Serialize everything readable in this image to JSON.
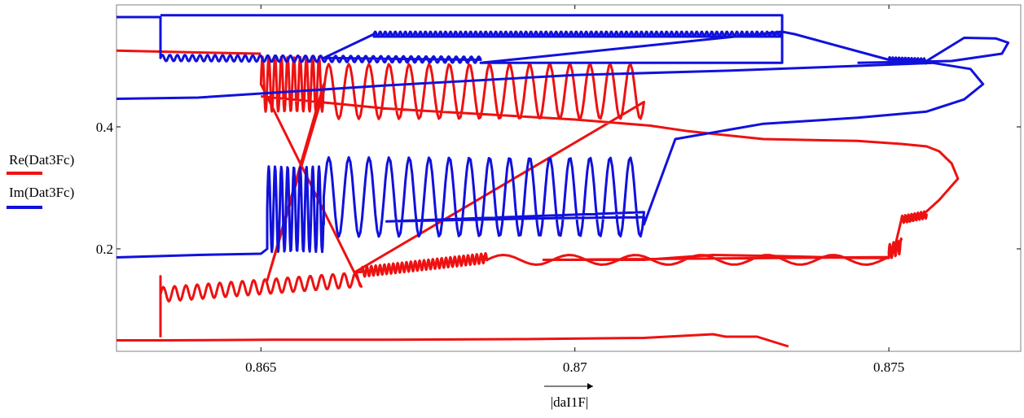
{
  "chart_data": {
    "type": "line",
    "title": "",
    "xlabel": "|daI1F|",
    "ylabel": "",
    "xlim": [
      0.8627,
      0.8771
    ],
    "ylim": [
      0.032,
      0.6
    ],
    "x_ticks": [
      {
        "value": 0.865,
        "label": "0.865"
      },
      {
        "value": 0.87,
        "label": "0.87"
      },
      {
        "value": 0.875,
        "label": "0.875"
      }
    ],
    "y_ticks": [
      {
        "value": 0.2,
        "label": "0.2"
      },
      {
        "value": 0.4,
        "label": "0.4"
      }
    ],
    "grid": false,
    "legend_position": "left",
    "series": [
      {
        "name": "Re(Dat3Fc)",
        "color": "#ee1111",
        "segments": [
          {
            "x": [
              0.8627,
              0.8634,
              0.8652,
              0.867,
              0.8692,
              0.8711,
              0.8722,
              0.8724,
              0.8729,
              0.8734
            ],
            "y": [
              0.05,
              0.05,
              0.051,
              0.051,
              0.052,
              0.054,
              0.06,
              0.056,
              0.056,
              0.04
            ]
          },
          {
            "x": [
              0.8634,
              0.8634,
              0.8634,
              0.8651,
              0.8665,
              0.8685,
              0.8695,
              0.8711,
              0.8722,
              0.8733,
              0.8745,
              0.875,
              0.8751,
              0.8753,
              0.8755,
              0.8758,
              0.8761,
              0.876,
              0.8758,
              0.8756,
              0.8752,
              0.8745,
              0.873,
              0.8718,
              0.8712,
              0.87,
              0.867,
              0.866,
              0.865
            ],
            "y": [
              0.055,
              0.155,
              0.125,
              0.148,
              0.162,
              0.19,
              0.182,
              0.182,
              0.19,
              0.188,
              0.185,
              0.185,
              0.205,
              0.245,
              0.252,
              0.28,
              0.315,
              0.34,
              0.36,
              0.368,
              0.372,
              0.377,
              0.38,
              0.393,
              0.402,
              0.412,
              0.43,
              0.44,
              0.45
            ],
            "oscillations": [
              {
                "x_from": 0.8634,
                "x_to": 0.8666,
                "center": [
                  0.125,
                  0.15
                ],
                "amplitude": 0.012,
                "period": 0.00018
              },
              {
                "x_from": 0.8666,
                "x_to": 0.8686,
                "center": [
                  0.162,
                  0.185
                ],
                "amplitude": 0.008,
                "period": 7e-05
              },
              {
                "x_from": 0.8686,
                "x_to": 0.875,
                "center": [
                  0.182,
                  0.182
                ],
                "amplitude": 0.008,
                "period": 0.00105
              },
              {
                "x_from": 0.875,
                "x_to": 0.8752,
                "center": [
                  0.195,
                  0.205
                ],
                "amplitude": 0.012,
                "period": 6e-05
              },
              {
                "x_from": 0.8752,
                "x_to": 0.8756,
                "center": [
                  0.248,
                  0.256
                ],
                "amplitude": 0.006,
                "period": 5e-05
              },
              {
                "x_from": 0.865,
                "x_to": 0.866,
                "center": [
                  0.47,
                  0.47
                ],
                "amplitude": 0.045,
                "period": 0.0001
              },
              {
                "x_from": 0.866,
                "x_to": 0.8711,
                "center": [
                  0.458,
                  0.458
                ],
                "amplitude": 0.045,
                "period": 0.00032
              }
            ]
          },
          {
            "x": [
              0.8627,
              0.864,
              0.865
            ],
            "y": [
              0.525,
              0.522,
              0.52
            ]
          }
        ]
      },
      {
        "name": "Im(Dat3Fc)",
        "color": "#1111dd",
        "segments": [
          {
            "x": [
              0.8627,
              0.864,
              0.865,
              0.8651,
              0.866,
              0.867,
              0.868,
              0.8695,
              0.8711,
              0.8711,
              0.8716,
              0.873,
              0.8745,
              0.8756,
              0.8762,
              0.8765,
              0.8763,
              0.8757,
              0.8745,
              0.8724,
              0.87,
              0.867,
              0.864,
              0.8627
            ],
            "y": [
              0.186,
              0.19,
              0.192,
              0.2,
              0.24,
              0.245,
              0.247,
              0.25,
              0.252,
              0.24,
              0.38,
              0.405,
              0.415,
              0.425,
              0.445,
              0.47,
              0.495,
              0.505,
              0.5,
              0.492,
              0.485,
              0.468,
              0.448,
              0.446
            ],
            "oscillations": [
              {
                "x_from": 0.8651,
                "x_to": 0.866,
                "center": [
                  0.265,
                  0.265
                ],
                "amplitude": 0.07,
                "period": 0.0001
              },
              {
                "x_from": 0.866,
                "x_to": 0.8711,
                "center": [
                  0.285,
                  0.285
                ],
                "amplitude": 0.065,
                "period": 0.00032
              }
            ]
          },
          {
            "x": [
              0.8627,
              0.8634,
              0.8634,
              0.8634,
              0.866,
              0.8685,
              0.8733,
              0.8733,
              0.8668,
              0.8668,
              0.8735,
              0.8762,
              0.8767,
              0.8769,
              0.8768,
              0.876,
              0.8745
            ],
            "y": [
              0.58,
              0.58,
              0.578,
              0.515,
              0.513,
              0.505,
              0.505,
              0.548,
              0.548,
              0.553,
              0.552,
              0.546,
              0.545,
              0.538,
              0.52,
              0.508,
              0.505
            ],
            "oscillations": [
              {
                "x_from": 0.8634,
                "x_to": 0.8685,
                "center": [
                  0.513,
                  0.51
                ],
                "amplitude": 0.005,
                "period": 0.00012
              },
              {
                "x_from": 0.8668,
                "x_to": 0.8733,
                "center": [
                  0.552,
                  0.552
                ],
                "amplitude": 0.004,
                "period": 8e-05
              },
              {
                "x_from": 0.875,
                "x_to": 0.8756,
                "center": [
                  0.51,
                  0.508
                ],
                "amplitude": 0.004,
                "period": 5e-05
              }
            ]
          },
          {
            "x": [
              0.8634,
              0.8733,
              0.8733
            ],
            "y": [
              0.583,
              0.583,
              0.548
            ]
          }
        ]
      }
    ]
  }
}
